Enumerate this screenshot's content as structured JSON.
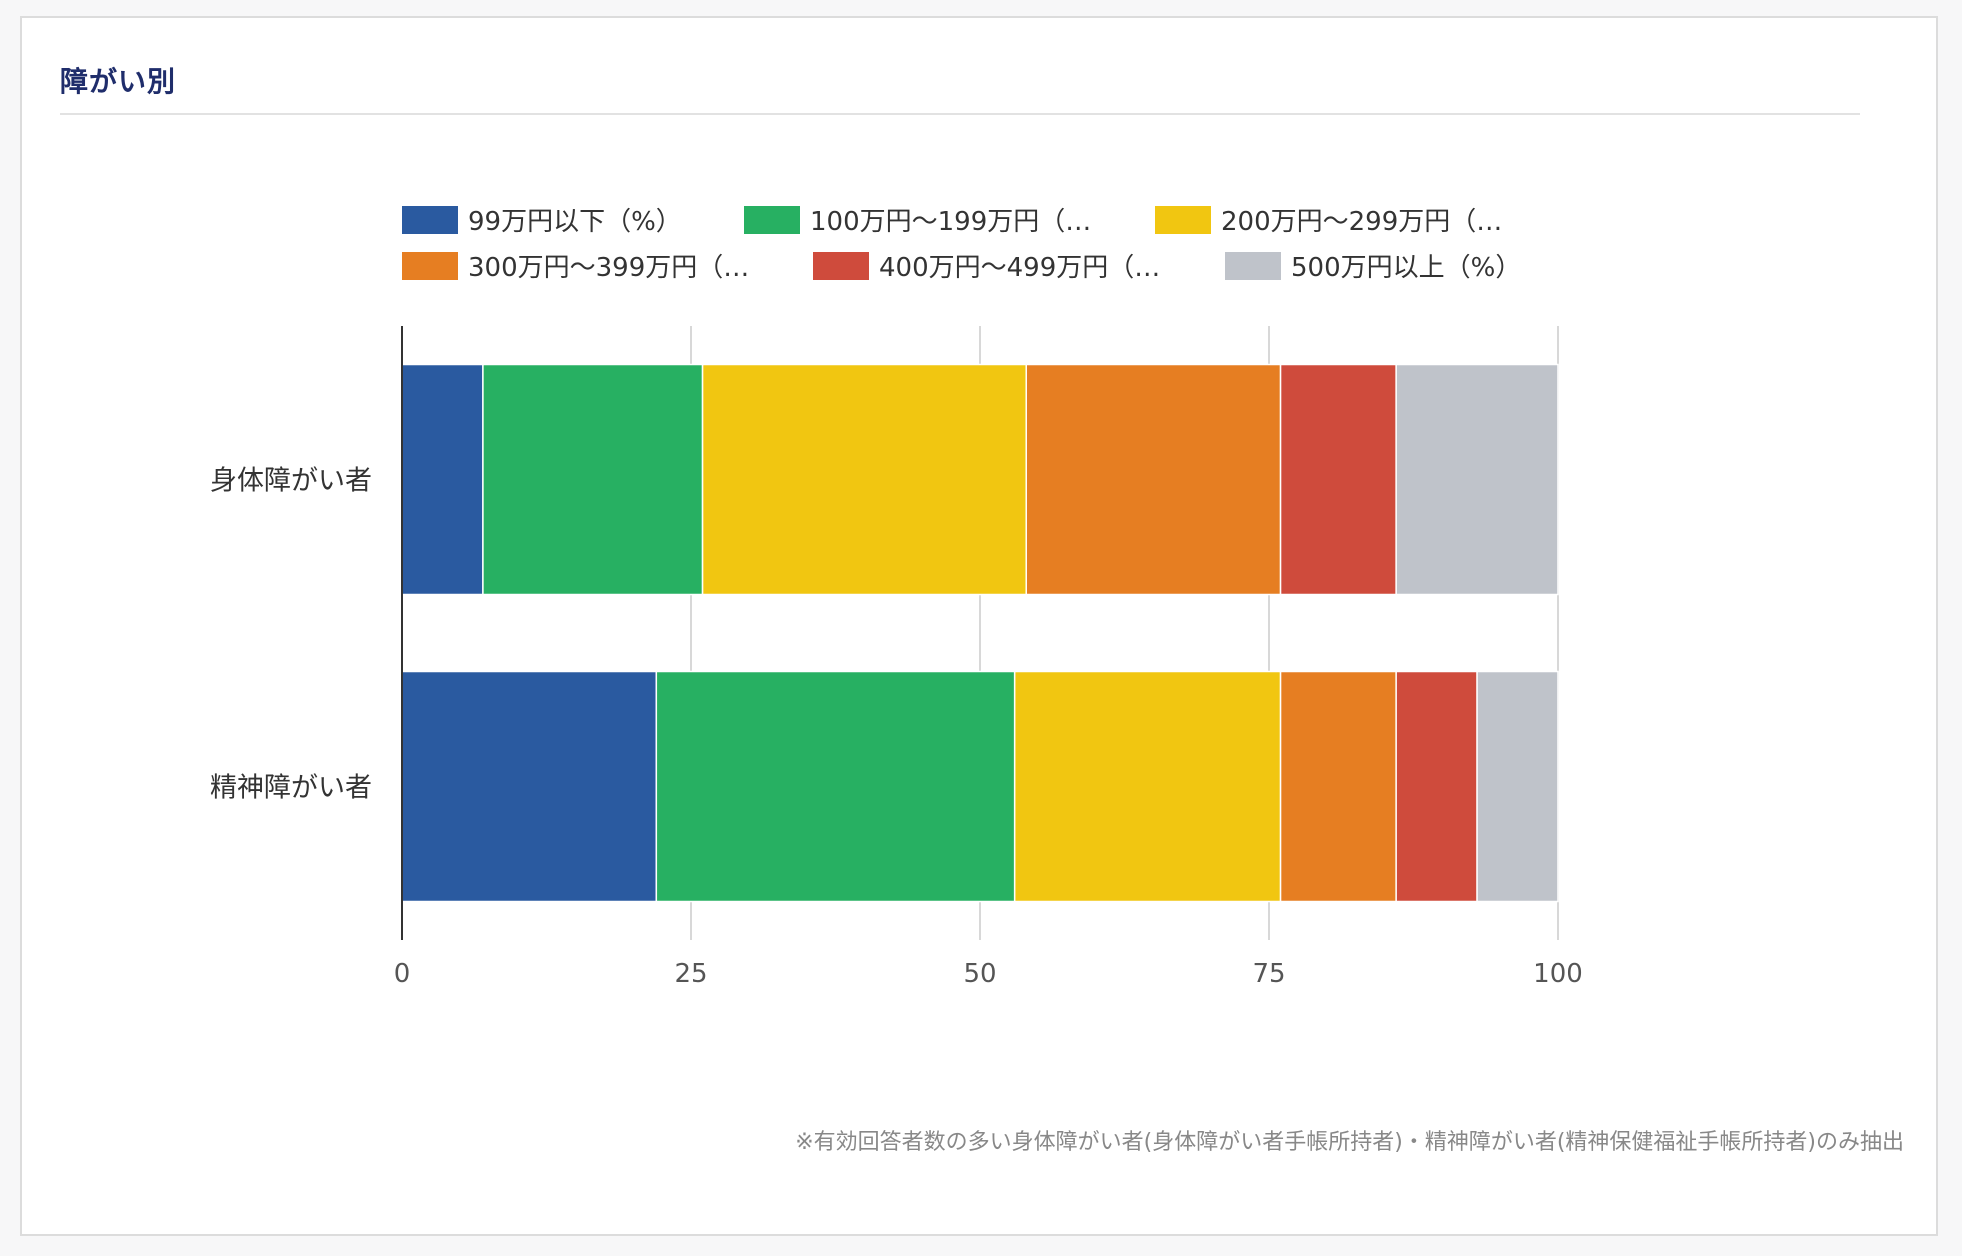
{
  "header": {
    "title": "障がい別"
  },
  "footnote": "※有効回答者数の多い身体障がい者(身体障がい者手帳所持者)・精神障がい者(精神保健福祉手帳所持者)のみ抽出",
  "chart_data": {
    "type": "bar",
    "orientation": "horizontal",
    "stacked": true,
    "categories": [
      "身体障がい者",
      "精神障がい者"
    ],
    "series": [
      {
        "name": "99万円以下（%）",
        "legend_label": "99万円以下（%）",
        "color": "#2a5aa0",
        "values": [
          7,
          22
        ]
      },
      {
        "name": "100万円〜199万円（%）",
        "legend_label": "100万円〜199万円（…",
        "color": "#27b062",
        "values": [
          19,
          31
        ]
      },
      {
        "name": "200万円〜299万円（%）",
        "legend_label": "200万円〜299万円（…",
        "color": "#f1c611",
        "values": [
          28,
          23
        ]
      },
      {
        "name": "300万円〜399万円（%）",
        "legend_label": "300万円〜399万円（…",
        "color": "#e67e22",
        "values": [
          22,
          10
        ]
      },
      {
        "name": "400万円〜499万円（%）",
        "legend_label": "400万円〜499万円（…",
        "color": "#cf4b3c",
        "values": [
          10,
          7
        ]
      },
      {
        "name": "500万円以上（%）",
        "legend_label": "500万円以上（%）",
        "color": "#bfc3ca",
        "values": [
          14,
          7
        ]
      }
    ],
    "xlim": [
      0,
      100
    ],
    "xticks": [
      0,
      25,
      50,
      75,
      100
    ],
    "grid": true,
    "legend_position": "top"
  }
}
